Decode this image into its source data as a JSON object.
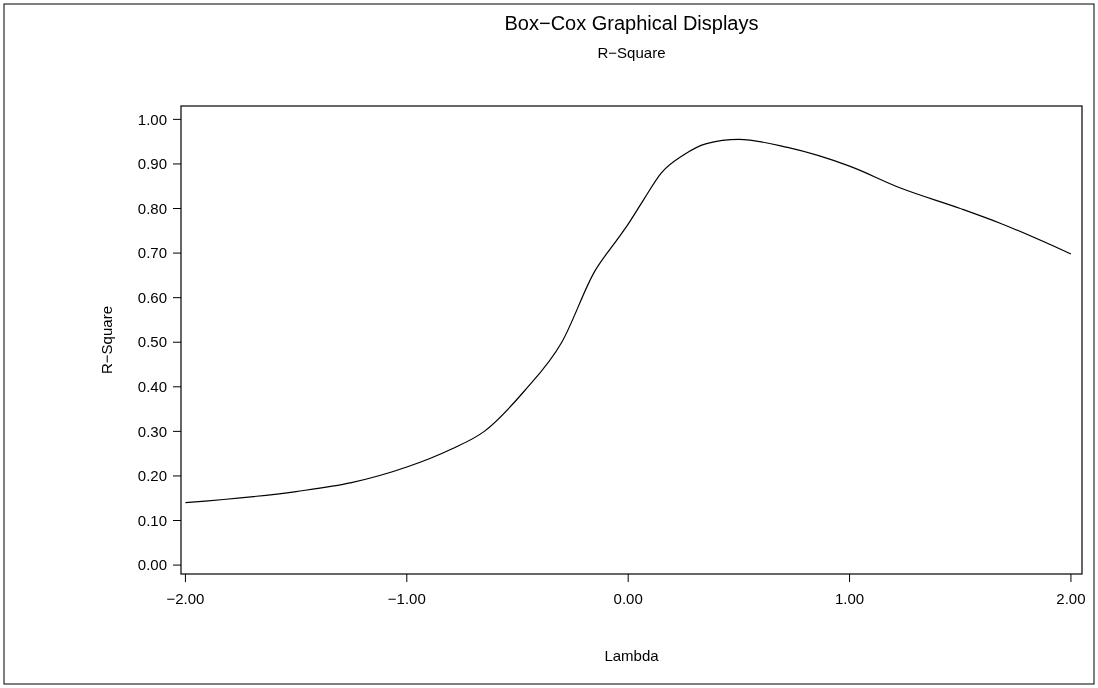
{
  "chart_data": {
    "type": "line",
    "title": "Box−Cox Graphical Displays",
    "subtitle": "R−Square",
    "xlabel": "Lambda",
    "ylabel": "R−Square",
    "x": [
      -2,
      -1.5,
      -1.25,
      -1,
      -0.8,
      -0.65,
      -0.47,
      -0.3,
      -0.15,
      -0.05,
      0,
      0.07,
      0.15,
      0.25,
      0.35,
      0.5,
      0.72,
      1,
      1.23,
      1.5,
      1.68,
      2
    ],
    "series": [
      {
        "color": "#000000",
        "values": [
          0.14,
          0.165,
          0.185,
          0.22,
          0.26,
          0.3,
          0.39,
          0.5,
          0.66,
          0.73,
          0.765,
          0.82,
          0.88,
          0.92,
          0.945,
          0.955,
          0.937,
          0.895,
          0.846,
          0.8,
          0.767,
          0.698
        ]
      }
    ],
    "xlim": [
      -2.02,
      2.05
    ],
    "ylim": [
      -0.02,
      1.03
    ],
    "xticks": [
      {
        "value": -2,
        "label": "−2.00"
      },
      {
        "value": -1,
        "label": "−1.00"
      },
      {
        "value": 0,
        "label": "0.00"
      },
      {
        "value": 1,
        "label": "1.00"
      },
      {
        "value": 2,
        "label": "2.00"
      }
    ],
    "yticks": [
      {
        "value": 0,
        "label": "0.00"
      },
      {
        "value": 0.1,
        "label": "0.10"
      },
      {
        "value": 0.2,
        "label": "0.20"
      },
      {
        "value": 0.3,
        "label": "0.30"
      },
      {
        "value": 0.4,
        "label": "0.40"
      },
      {
        "value": 0.5,
        "label": "0.50"
      },
      {
        "value": 0.6,
        "label": "0.60"
      },
      {
        "value": 0.7,
        "label": "0.70"
      },
      {
        "value": 0.8,
        "label": "0.80"
      },
      {
        "value": 0.9,
        "label": "0.90"
      },
      {
        "value": 1,
        "label": "1.00"
      }
    ],
    "grid": false,
    "marker": "none",
    "line_style": "solid"
  }
}
